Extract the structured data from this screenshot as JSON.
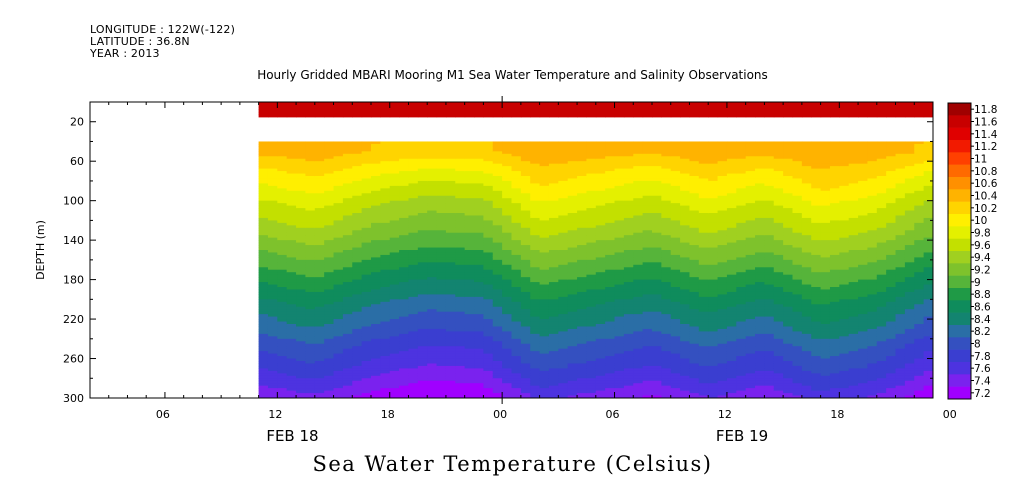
{
  "header": {
    "longitude": "LONGITUDE : 122W(-122)",
    "latitude": "LATITUDE : 36.8N",
    "year": "YEAR : 2013",
    "title": "Hourly Gridded MBARI Mooring M1 Sea Water Temperature and Salinity Observations"
  },
  "footer": {
    "variable_title": "Sea Water Temperature (Celsius)"
  },
  "chart_data": {
    "type": "heatmap",
    "title": "Hourly Gridded MBARI Mooring M1 Sea Water Temperature and Salinity Observations",
    "subtitle": "Sea Water Temperature (Celsius)",
    "xlabel": "",
    "ylabel": "DEPTH (m)",
    "x_tick_labels": [
      "06",
      "12",
      "18",
      "00",
      "06",
      "12",
      "18",
      "00"
    ],
    "x_date_labels": [
      "FEB 18",
      "FEB 19"
    ],
    "y_tick_labels": [
      "20",
      "60",
      "100",
      "140",
      "180",
      "220",
      "260",
      "300"
    ],
    "xlim_hours": [
      2,
      47
    ],
    "ylim_depth_m": [
      300,
      0
    ],
    "data_start_hour": 11,
    "grid": false,
    "colorbar": {
      "placement": "right",
      "levels": [
        "11.8",
        "11.6",
        "11.4",
        "11.2",
        "11",
        "10.8",
        "10.6",
        "10.4",
        "10.2",
        "10",
        "9.8",
        "9.6",
        "9.4",
        "9.2",
        "9",
        "8.8",
        "8.6",
        "8.4",
        "8.2",
        "8",
        "7.8",
        "7.6",
        "7.4",
        "7.2"
      ],
      "colors": [
        "#a00000",
        "#c80000",
        "#e00000",
        "#f21a00",
        "#ff4000",
        "#ff6a00",
        "#ff9000",
        "#ffb300",
        "#ffd400",
        "#ffef00",
        "#e4f000",
        "#c3e000",
        "#a0d020",
        "#7ec22c",
        "#56b43a",
        "#1f9a46",
        "#0f8c5c",
        "#138470",
        "#2a6ea6",
        "#3450c0",
        "#3a3ed0",
        "#4d33e0",
        "#7a22ee",
        "#a000ff"
      ]
    },
    "depth_profile": {
      "depths_m": [
        10,
        35,
        50,
        70,
        90,
        110,
        130,
        150,
        170,
        190,
        210,
        230,
        250,
        270,
        290,
        300
      ],
      "temps_c": [
        11.75,
        null,
        10.45,
        10.15,
        9.9,
        9.65,
        9.45,
        9.2,
        8.95,
        8.7,
        8.45,
        8.25,
        8.0,
        7.8,
        7.55,
        7.4
      ]
    },
    "time_anomaly": {
      "hours": [
        11,
        14,
        17,
        20,
        23,
        26,
        29,
        32,
        35,
        38,
        41,
        44,
        47
      ],
      "offset_c": [
        0.0,
        0.15,
        -0.1,
        -0.25,
        -0.2,
        0.25,
        0.1,
        -0.05,
        0.2,
        0.0,
        0.3,
        0.15,
        -0.2
      ]
    },
    "missing_depth_band_m": [
      15,
      40
    ]
  }
}
